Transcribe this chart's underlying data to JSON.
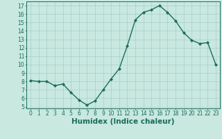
{
  "x": [
    0,
    1,
    2,
    3,
    4,
    5,
    6,
    7,
    8,
    9,
    10,
    11,
    12,
    13,
    14,
    15,
    16,
    17,
    18,
    19,
    20,
    21,
    22,
    23
  ],
  "y": [
    8.1,
    8.0,
    8.0,
    7.5,
    7.7,
    6.7,
    5.8,
    5.2,
    5.7,
    7.0,
    8.3,
    9.5,
    12.2,
    15.3,
    16.2,
    16.5,
    17.0,
    16.2,
    15.2,
    13.8,
    12.9,
    12.5,
    12.6,
    10.0
  ],
  "line_color": "#1a6b5a",
  "marker": "D",
  "marker_size": 2.2,
  "linewidth": 1.0,
  "background_color": "#c8e8e0",
  "grid_color": "#a8cfc8",
  "xlabel": "Humidex (Indice chaleur)",
  "xlim": [
    -0.5,
    23.5
  ],
  "ylim": [
    4.8,
    17.5
  ],
  "yticks": [
    5,
    6,
    7,
    8,
    9,
    10,
    11,
    12,
    13,
    14,
    15,
    16,
    17
  ],
  "xticks": [
    0,
    1,
    2,
    3,
    4,
    5,
    6,
    7,
    8,
    9,
    10,
    11,
    12,
    13,
    14,
    15,
    16,
    17,
    18,
    19,
    20,
    21,
    22,
    23
  ],
  "tick_label_fontsize": 5.5,
  "xlabel_fontsize": 7.5,
  "xlabel_fontweight": "bold"
}
